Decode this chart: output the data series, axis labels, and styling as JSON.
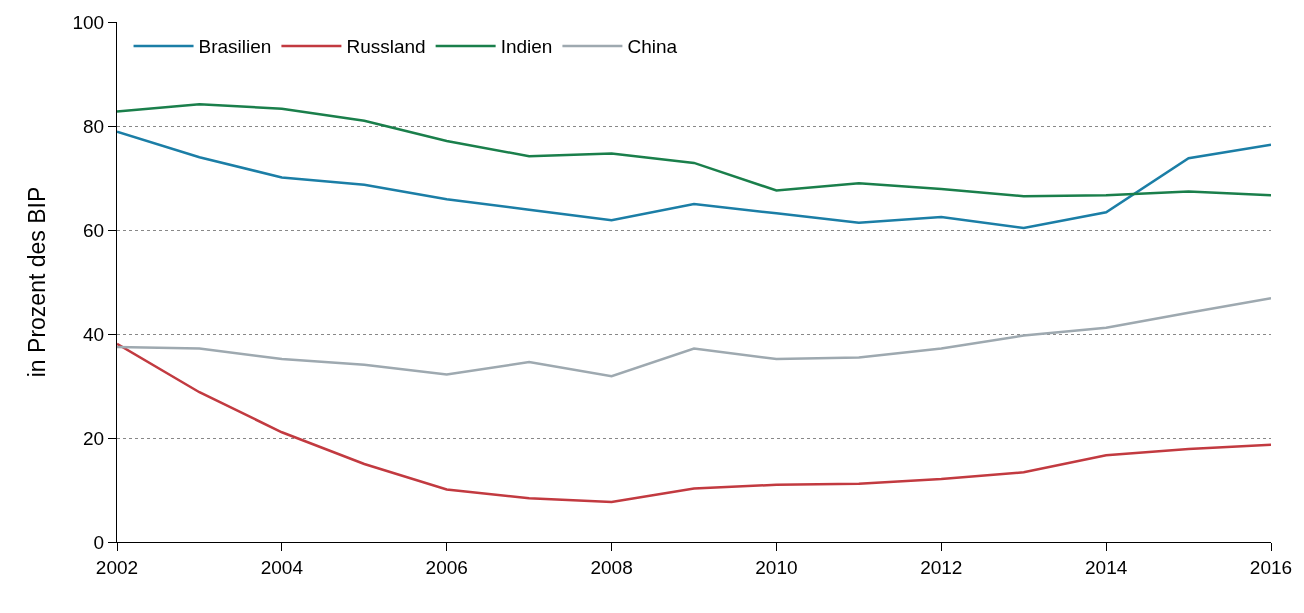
{
  "chart_data": {
    "type": "line",
    "ylabel": "in Prozent des BIP",
    "x": [
      2002,
      2003,
      2004,
      2005,
      2006,
      2007,
      2008,
      2009,
      2010,
      2011,
      2012,
      2013,
      2014,
      2015,
      2016
    ],
    "series": [
      {
        "name": "Brasilien",
        "color": "#1b7ea6",
        "values": [
          78.9,
          74.0,
          70.1,
          68.7,
          65.9,
          63.9,
          61.9,
          65.0,
          63.2,
          61.4,
          62.5,
          60.4,
          63.4,
          73.8,
          76.4
        ]
      },
      {
        "name": "Russland",
        "color": "#c23a40",
        "values": [
          38.1,
          28.8,
          21.1,
          15.0,
          10.1,
          8.4,
          7.7,
          10.3,
          11.0,
          11.2,
          12.1,
          13.4,
          16.7,
          17.9,
          18.7
        ]
      },
      {
        "name": "Indien",
        "color": "#1a7f4b",
        "values": [
          82.8,
          84.2,
          83.3,
          81.0,
          77.1,
          74.2,
          74.7,
          72.9,
          67.6,
          69.0,
          67.9,
          66.5,
          66.7,
          67.4,
          66.7
        ]
      },
      {
        "name": "China",
        "color": "#9ea9b0",
        "values": [
          37.5,
          37.2,
          35.2,
          34.1,
          32.2,
          34.6,
          31.9,
          37.2,
          35.2,
          35.5,
          37.2,
          39.7,
          41.2,
          44.1,
          46.9
        ]
      }
    ],
    "xlim": [
      2002,
      2016
    ],
    "xticks": [
      2002,
      2004,
      2006,
      2008,
      2010,
      2012,
      2014,
      2016
    ],
    "ylim": [
      0,
      100
    ],
    "yticks": [
      0,
      20,
      40,
      60,
      80,
      100
    ],
    "grid": "y",
    "legend": "top left",
    "marker": "none",
    "line_style": "solid"
  }
}
